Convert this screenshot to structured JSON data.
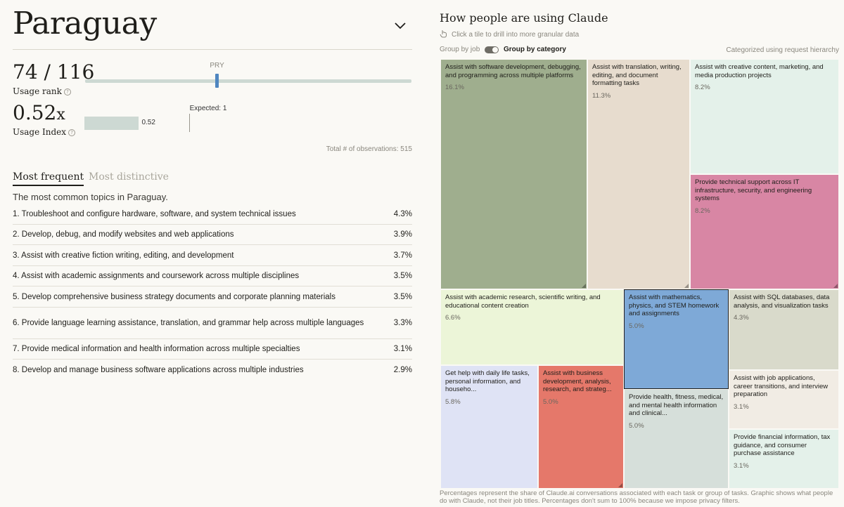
{
  "country": {
    "name": "Paraguay",
    "code": "PRY"
  },
  "usage_rank": {
    "value": "74 / 116",
    "rank": 74,
    "total": 116,
    "label": "Usage rank",
    "help": "?"
  },
  "usage_index": {
    "value": "0.52",
    "unit": "x",
    "value_number": 0.52,
    "bar_label": "0.52",
    "label": "Usage Index",
    "help": "?",
    "expected_label": "Expected: 1",
    "expected_value": 1
  },
  "observations": "Total # of observations: 515",
  "tabs": [
    {
      "label": "Most frequent",
      "active": true
    },
    {
      "label": "Most distinctive",
      "active": false
    }
  ],
  "topics_intro": "The most common topics in Paraguay.",
  "topics": [
    {
      "text": "1. Troubleshoot and configure hardware, software, and system technical issues",
      "pct": "4.3%"
    },
    {
      "text": "2. Develop, debug, and modify websites and web applications",
      "pct": "3.9%"
    },
    {
      "text": "3. Assist with creative fiction writing, editing, and development",
      "pct": "3.7%"
    },
    {
      "text": "4. Assist with academic assignments and coursework across multiple disciplines",
      "pct": "3.5%"
    },
    {
      "text": "5. Develop comprehensive business strategy documents and corporate planning materials",
      "pct": "3.5%"
    },
    {
      "text": "6. Provide language learning assistance, translation, and grammar help across multiple languages",
      "pct": "3.3%"
    },
    {
      "text": "7. Provide medical information and health information across multiple specialties",
      "pct": "3.1%"
    },
    {
      "text": "8. Develop and manage business software applications across multiple industries",
      "pct": "2.9%"
    }
  ],
  "right": {
    "title": "How people are using Claude",
    "hint": "Click a tile to drill into more granular data",
    "hint_icon": "pointer-hand-icon",
    "group_by_job": "Group by job",
    "group_by_category": "Group by category",
    "categorized_note": "Categorized using request hierarchy",
    "footnote": "Percentages represent the share of Claude.ai conversations associated with each task or group of tasks. Graphic shows what people do with Claude, not their job titles. Percentages don't sum to 100% because we impose privacy filters."
  },
  "treemap": [
    {
      "label": "Assist with software development, debugging, and programming across multiple platforms",
      "pct": "16.1%",
      "value": 16.1,
      "color": "#9fae8e"
    },
    {
      "label": "Assist with translation, writing, editing, and document formatting tasks",
      "pct": "11.3%",
      "value": 11.3,
      "color": "#e7dcce"
    },
    {
      "label": "Assist with creative content, marketing, and media production projects",
      "pct": "8.2%",
      "value": 8.2,
      "color": "#e4f1ea"
    },
    {
      "label": "Provide technical support across IT infrastructure, security, and engineering systems",
      "pct": "8.2%",
      "value": 8.2,
      "color": "#d886a4"
    },
    {
      "label": "Assist with academic research, scientific writing, and educational content creation",
      "pct": "6.6%",
      "value": 6.6,
      "color": "#ecf5d8"
    },
    {
      "label": "Assist with mathematics, physics, and STEM homework and assignments",
      "pct": "5.0%",
      "value": 5.0,
      "color": "#7ea9d7"
    },
    {
      "label": "Assist with SQL databases, data analysis, and visualization tasks",
      "pct": "4.3%",
      "value": 4.3,
      "color": "#d9dacb"
    },
    {
      "label": "Get help with daily life tasks, personal information, and househo...",
      "pct": "5.8%",
      "value": 5.8,
      "color": "#dfe3f5"
    },
    {
      "label": "Assist with business development, analysis, research, and strateg...",
      "pct": "5.0%",
      "value": 5.0,
      "color": "#e5786a"
    },
    {
      "label": "Provide health, fitness, medical, and mental health information and clinical...",
      "pct": "5.0%",
      "value": 5.0,
      "color": "#d6dfda"
    },
    {
      "label": "Assist with job applications, career transitions, and interview preparation",
      "pct": "3.1%",
      "value": 3.1,
      "color": "#f1ece4"
    },
    {
      "label": "Provide financial information, tax guidance, and consumer purchase assistance",
      "pct": "3.1%",
      "value": 3.1,
      "color": "#e4f1ea"
    }
  ]
}
